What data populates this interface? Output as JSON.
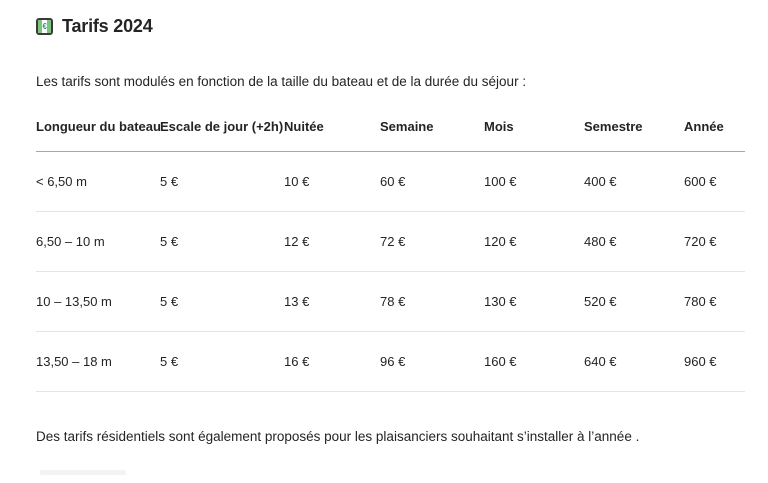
{
  "header": {
    "icon_name": "euro-banknote-icon",
    "icon_glyph": "€",
    "title": "Tarifs 2024"
  },
  "intro_text": "Les tarifs sont modulés en fonction de la taille du bateau et de la durée du séjour :",
  "table": {
    "columns": [
      "Longueur du bateau",
      "Escale de jour (+2h)",
      "Nuitée",
      "Semaine",
      "Mois",
      "Semestre",
      "Année"
    ],
    "rows": [
      [
        "< 6,50 m",
        "5 €",
        "10 €",
        "60 €",
        "100 €",
        "400 €",
        "600 €"
      ],
      [
        "6,50 – 10 m",
        "5 €",
        "12 €",
        "72 €",
        "120 €",
        "480 €",
        "720 €"
      ],
      [
        "10 – 13,50 m",
        "5 €",
        "13 €",
        "78 €",
        "130 €",
        "520 €",
        "780 €"
      ],
      [
        "13,50 – 18 m",
        "5 €",
        "16 €",
        "96 €",
        "160 €",
        "640 €",
        "960 €"
      ]
    ]
  },
  "footer_text": "Des tarifs résidentiels sont également proposés pour les plaisanciers souhaitant s’installer à l’année .",
  "colors": {
    "text": "#242424",
    "header_rule": "#a6a6a6",
    "row_rule": "#e4e4e4",
    "icon_green": "#7cc47f",
    "icon_border": "#3a3a3a",
    "background": "#ffffff"
  }
}
